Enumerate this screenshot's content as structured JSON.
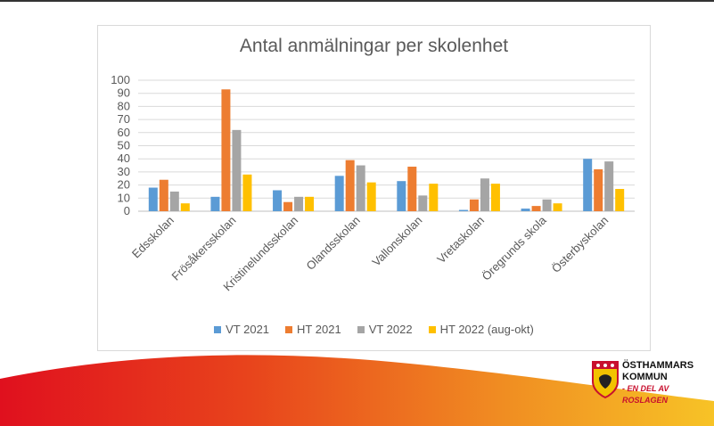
{
  "chart_data": {
    "type": "bar",
    "title": "Antal anmälningar per skolenhet",
    "categories": [
      "Edsskolan",
      "Frösåkersskolan",
      "Kristinelundsskolan",
      "Olandsskolan",
      "Vallonskolan",
      "Vretaskolan",
      "Öregrunds skola",
      "Österbyskolan"
    ],
    "series": [
      {
        "name": "VT 2021",
        "color": "#5b9bd5",
        "values": [
          18,
          11,
          16,
          27,
          23,
          1,
          2,
          40
        ]
      },
      {
        "name": "HT 2021",
        "color": "#ed7d31",
        "values": [
          24,
          93,
          7,
          39,
          34,
          9,
          4,
          32
        ]
      },
      {
        "name": "VT 2022",
        "color": "#a5a5a5",
        "values": [
          15,
          62,
          11,
          35,
          12,
          25,
          9,
          38
        ]
      },
      {
        "name": "HT 2022 (aug-okt)",
        "color": "#ffc000",
        "values": [
          6,
          28,
          11,
          22,
          21,
          21,
          6,
          17
        ]
      }
    ],
    "yticks": [
      "0",
      "10",
      "20",
      "30",
      "40",
      "50",
      "60",
      "70",
      "80",
      "90",
      "100"
    ],
    "ylim": [
      0,
      100
    ],
    "grid": true,
    "legend_position": "bottom"
  },
  "logo": {
    "line1": "ÖSTHAMMARS",
    "line2": "KOMMUN",
    "line3": "- EN DEL AV ROSLAGEN"
  }
}
